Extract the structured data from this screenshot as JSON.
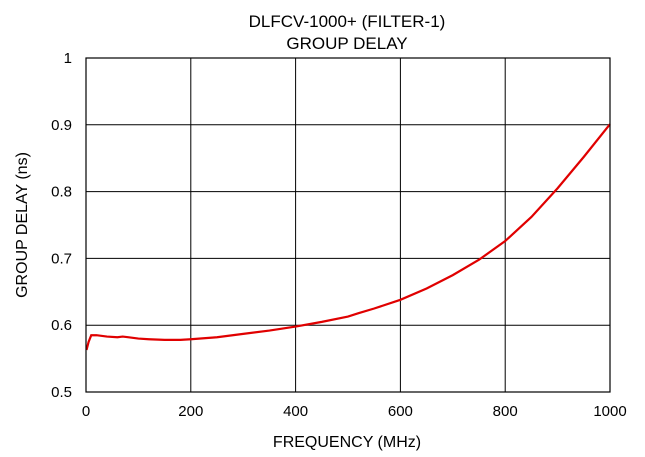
{
  "chart_data": {
    "type": "line",
    "title": "DLFCV-1000+ (FILTER-1)",
    "subtitle": "GROUP DELAY",
    "xlabel": "FREQUENCY (MHz)",
    "ylabel": "GROUP DELAY (ns)",
    "xlim": [
      0,
      1000
    ],
    "ylim": [
      0.5,
      1.0
    ],
    "xticks": [
      0,
      200,
      400,
      600,
      800,
      1000
    ],
    "xtick_labels": [
      "0",
      "200",
      "400",
      "600",
      "800",
      "1000"
    ],
    "yticks": [
      0.5,
      0.6,
      0.7,
      0.8,
      0.9,
      1.0
    ],
    "ytick_labels": [
      "0.5",
      "0.6",
      "0.7",
      "0.8",
      "0.9",
      "1"
    ],
    "grid": true,
    "series": [
      {
        "color": "#e00000",
        "x": [
          1,
          5,
          10,
          20,
          40,
          60,
          70,
          80,
          100,
          120,
          150,
          180,
          200,
          250,
          300,
          350,
          400,
          450,
          500,
          520,
          550,
          600,
          650,
          700,
          750,
          800,
          850,
          900,
          950,
          1000
        ],
        "y": [
          0.563,
          0.575,
          0.585,
          0.585,
          0.583,
          0.582,
          0.583,
          0.582,
          0.58,
          0.579,
          0.578,
          0.578,
          0.579,
          0.582,
          0.587,
          0.592,
          0.598,
          0.605,
          0.613,
          0.618,
          0.625,
          0.638,
          0.655,
          0.675,
          0.698,
          0.726,
          0.762,
          0.805,
          0.852,
          0.901
        ]
      }
    ]
  }
}
